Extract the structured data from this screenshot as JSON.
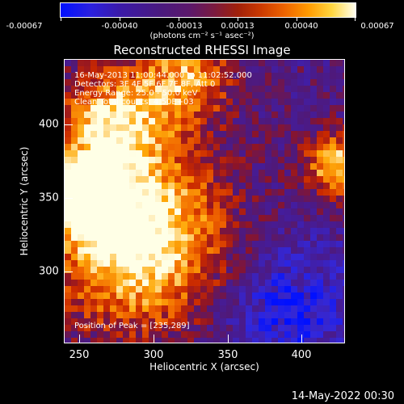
{
  "colorbar": {
    "tick_labels": [
      "-0.00067",
      "-0.00040",
      "-0.00013",
      "0.00013",
      "0.00040",
      "0.00067"
    ],
    "units_html": "(photons cm⁻² s⁻¹ asec⁻²)"
  },
  "title": "Reconstructed RHESSI Image",
  "info": {
    "time": "16-May-2013 11:00:44.000 to 11:02:52.000",
    "detectors": "Detectors: 3F 4F 5F 6F 7F 8F, Att 0",
    "energy": "Energy Range: 25.0 - 50.0 keV",
    "clean": "Clean    Total counts: 4.50E+03",
    "peak": "Position of Peak = [235,289]"
  },
  "axes": {
    "xlabel": "Heliocentric X (arcsec)",
    "ylabel": "Heliocentric Y (arcsec)",
    "xticks": [
      "250",
      "300",
      "350",
      "400"
    ],
    "yticks": [
      "400",
      "350",
      "300"
    ]
  },
  "timestamp": "14-May-2022 00:30",
  "colors": {
    "low": "#0010ff",
    "mid": "#4a1a7e",
    "high": "#fffff0"
  }
}
